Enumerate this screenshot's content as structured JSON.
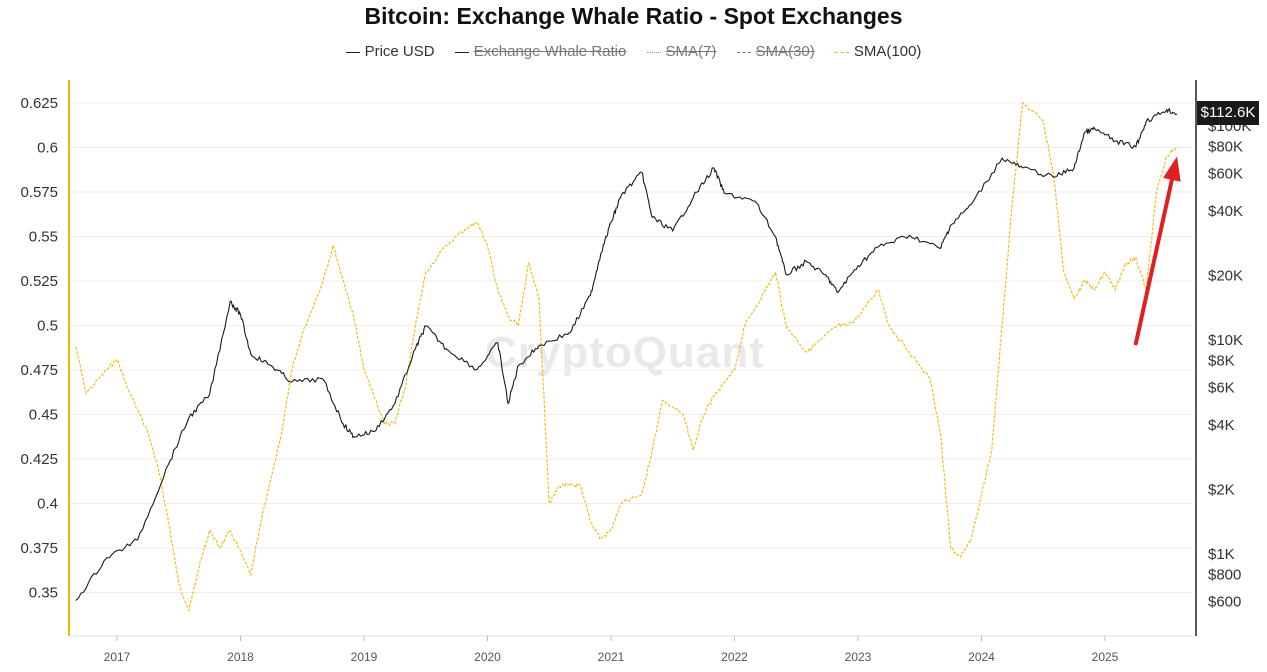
{
  "title": "Bitcoin: Exchange Whale Ratio - Spot Exchanges",
  "watermark": "CryptoQuant",
  "legend": [
    {
      "label": "Price USD",
      "color": "#222222",
      "style": "solid",
      "active": true
    },
    {
      "label": "Exchange Whale Ratio",
      "color": "#222222",
      "style": "solid",
      "active": false
    },
    {
      "label": "SMA(7)",
      "color": "#999999",
      "style": "dotted",
      "active": false
    },
    {
      "label": "SMA(30)",
      "color": "#777777",
      "style": "dashed",
      "active": false
    },
    {
      "label": "SMA(100)",
      "color": "#f0b90b",
      "style": "dashed",
      "active": true
    }
  ],
  "price_badge": "$112.6K",
  "colors": {
    "price": "#1a1a1a",
    "sma100": "#f0b90b",
    "left_axis": "#f0b90b",
    "arrow": "#e02020"
  },
  "chart_data": {
    "type": "line",
    "title": "Bitcoin: Exchange Whale Ratio - Spot Exchanges",
    "x_ticks": [
      "2017",
      "2018",
      "2019",
      "2020",
      "2021",
      "2022",
      "2023",
      "2024",
      "2025"
    ],
    "y_left": {
      "ticks": [
        "0.625",
        "0.6",
        "0.575",
        "0.55",
        "0.525",
        "0.5",
        "0.475",
        "0.45",
        "0.425",
        "0.4",
        "0.375",
        "0.35"
      ],
      "values": [
        0.625,
        0.6,
        0.575,
        0.55,
        0.525,
        0.5,
        0.475,
        0.45,
        0.425,
        0.4,
        0.375,
        0.35
      ],
      "range": [
        0.335,
        0.635
      ]
    },
    "y_right": {
      "scale": "log",
      "ticks": [
        "$100K",
        "$80K",
        "$60K",
        "$40K",
        "$20K",
        "$10K",
        "$8K",
        "$6K",
        "$4K",
        "$2K",
        "$1K",
        "$800",
        "$600"
      ],
      "values": [
        100000,
        80000,
        60000,
        40000,
        20000,
        10000,
        8000,
        6000,
        4000,
        2000,
        1000,
        800,
        600
      ]
    },
    "series": [
      {
        "name": "Price USD",
        "axis": "right",
        "points": [
          [
            "2016-09",
            600
          ],
          [
            "2016-12",
            950
          ],
          [
            "2017-03",
            1150
          ],
          [
            "2017-06",
            2600
          ],
          [
            "2017-08",
            4300
          ],
          [
            "2017-10",
            5500
          ],
          [
            "2017-12",
            15000
          ],
          [
            "2018-01",
            13000
          ],
          [
            "2018-02",
            8500
          ],
          [
            "2018-04",
            7500
          ],
          [
            "2018-06",
            6300
          ],
          [
            "2018-09",
            6500
          ],
          [
            "2018-11",
            4000
          ],
          [
            "2018-12",
            3500
          ],
          [
            "2019-02",
            3700
          ],
          [
            "2019-04",
            5000
          ],
          [
            "2019-06",
            9000
          ],
          [
            "2019-07",
            11500
          ],
          [
            "2019-09",
            9000
          ],
          [
            "2019-12",
            7200
          ],
          [
            "2020-02",
            9600
          ],
          [
            "2020-03",
            5000
          ],
          [
            "2020-04",
            7500
          ],
          [
            "2020-06",
            9300
          ],
          [
            "2020-09",
            10700
          ],
          [
            "2020-11",
            16000
          ],
          [
            "2020-12",
            25000
          ],
          [
            "2021-01",
            35000
          ],
          [
            "2021-02",
            47000
          ],
          [
            "2021-04",
            60000
          ],
          [
            "2021-05",
            37000
          ],
          [
            "2021-07",
            32000
          ],
          [
            "2021-09",
            46000
          ],
          [
            "2021-11",
            63000
          ],
          [
            "2021-12",
            48000
          ],
          [
            "2022-03",
            44000
          ],
          [
            "2022-05",
            30000
          ],
          [
            "2022-06",
            20000
          ],
          [
            "2022-08",
            23000
          ],
          [
            "2022-10",
            19500
          ],
          [
            "2022-11",
            16500
          ],
          [
            "2023-01",
            22000
          ],
          [
            "2023-03",
            27000
          ],
          [
            "2023-06",
            30500
          ],
          [
            "2023-09",
            26500
          ],
          [
            "2023-10",
            34000
          ],
          [
            "2023-12",
            42500
          ],
          [
            "2024-03",
            70000
          ],
          [
            "2024-05",
            63000
          ],
          [
            "2024-08",
            57000
          ],
          [
            "2024-10",
            63000
          ],
          [
            "2024-11",
            92000
          ],
          [
            "2024-12",
            96000
          ],
          [
            "2025-02",
            84000
          ],
          [
            "2025-04",
            79000
          ],
          [
            "2025-05",
            104000
          ],
          [
            "2025-07",
            118000
          ],
          [
            "2025-08",
            112600
          ]
        ]
      },
      {
        "name": "SMA(100)",
        "axis": "left",
        "points": [
          [
            "2016-09",
            0.488
          ],
          [
            "2016-10",
            0.462
          ],
          [
            "2016-12",
            0.475
          ],
          [
            "2017-01",
            0.481
          ],
          [
            "2017-02",
            0.465
          ],
          [
            "2017-04",
            0.44
          ],
          [
            "2017-05",
            0.42
          ],
          [
            "2017-06",
            0.39
          ],
          [
            "2017-07",
            0.355
          ],
          [
            "2017-08",
            0.34
          ],
          [
            "2017-09",
            0.365
          ],
          [
            "2017-10",
            0.385
          ],
          [
            "2017-11",
            0.375
          ],
          [
            "2017-12",
            0.385
          ],
          [
            "2018-02",
            0.36
          ],
          [
            "2018-03",
            0.39
          ],
          [
            "2018-05",
            0.44
          ],
          [
            "2018-06",
            0.475
          ],
          [
            "2018-07",
            0.495
          ],
          [
            "2018-09",
            0.525
          ],
          [
            "2018-10",
            0.545
          ],
          [
            "2018-11",
            0.525
          ],
          [
            "2018-12",
            0.505
          ],
          [
            "2019-01",
            0.475
          ],
          [
            "2019-03",
            0.445
          ],
          [
            "2019-04",
            0.445
          ],
          [
            "2019-05",
            0.465
          ],
          [
            "2019-06",
            0.5
          ],
          [
            "2019-07",
            0.53
          ],
          [
            "2019-09",
            0.545
          ],
          [
            "2019-11",
            0.555
          ],
          [
            "2019-12",
            0.558
          ],
          [
            "2020-01",
            0.545
          ],
          [
            "2020-02",
            0.52
          ],
          [
            "2020-03",
            0.505
          ],
          [
            "2020-04",
            0.5
          ],
          [
            "2020-05",
            0.535
          ],
          [
            "2020-06",
            0.515
          ],
          [
            "2020-07",
            0.4
          ],
          [
            "2020-08",
            0.41
          ],
          [
            "2020-09",
            0.41
          ],
          [
            "2020-10",
            0.41
          ],
          [
            "2020-11",
            0.39
          ],
          [
            "2020-12",
            0.38
          ],
          [
            "2021-01",
            0.385
          ],
          [
            "2021-02",
            0.4
          ],
          [
            "2021-04",
            0.405
          ],
          [
            "2021-05",
            0.43
          ],
          [
            "2021-06",
            0.458
          ],
          [
            "2021-08",
            0.45
          ],
          [
            "2021-09",
            0.43
          ],
          [
            "2021-10",
            0.45
          ],
          [
            "2021-11",
            0.46
          ],
          [
            "2022-01",
            0.475
          ],
          [
            "2022-02",
            0.5
          ],
          [
            "2022-04",
            0.52
          ],
          [
            "2022-05",
            0.53
          ],
          [
            "2022-06",
            0.5
          ],
          [
            "2022-08",
            0.485
          ],
          [
            "2022-09",
            0.49
          ],
          [
            "2022-11",
            0.5
          ],
          [
            "2022-12",
            0.5
          ],
          [
            "2023-01",
            0.505
          ],
          [
            "2023-03",
            0.52
          ],
          [
            "2023-04",
            0.5
          ],
          [
            "2023-06",
            0.485
          ],
          [
            "2023-08",
            0.47
          ],
          [
            "2023-09",
            0.44
          ],
          [
            "2023-10",
            0.375
          ],
          [
            "2023-11",
            0.37
          ],
          [
            "2023-12",
            0.38
          ],
          [
            "2024-02",
            0.43
          ],
          [
            "2024-03",
            0.5
          ],
          [
            "2024-04",
            0.57
          ],
          [
            "2024-05",
            0.625
          ],
          [
            "2024-07",
            0.615
          ],
          [
            "2024-08",
            0.585
          ],
          [
            "2024-09",
            0.53
          ],
          [
            "2024-10",
            0.515
          ],
          [
            "2024-11",
            0.525
          ],
          [
            "2024-12",
            0.52
          ],
          [
            "2025-01",
            0.53
          ],
          [
            "2025-02",
            0.52
          ],
          [
            "2025-03",
            0.535
          ],
          [
            "2025-04",
            0.538
          ],
          [
            "2025-05",
            0.52
          ],
          [
            "2025-06",
            0.575
          ],
          [
            "2025-07",
            0.595
          ],
          [
            "2025-08",
            0.6
          ]
        ]
      }
    ],
    "annotation": {
      "type": "arrow",
      "color": "#e02020",
      "from": [
        "2025-04",
        0.49
      ],
      "to": [
        "2025-08",
        0.595
      ]
    }
  }
}
